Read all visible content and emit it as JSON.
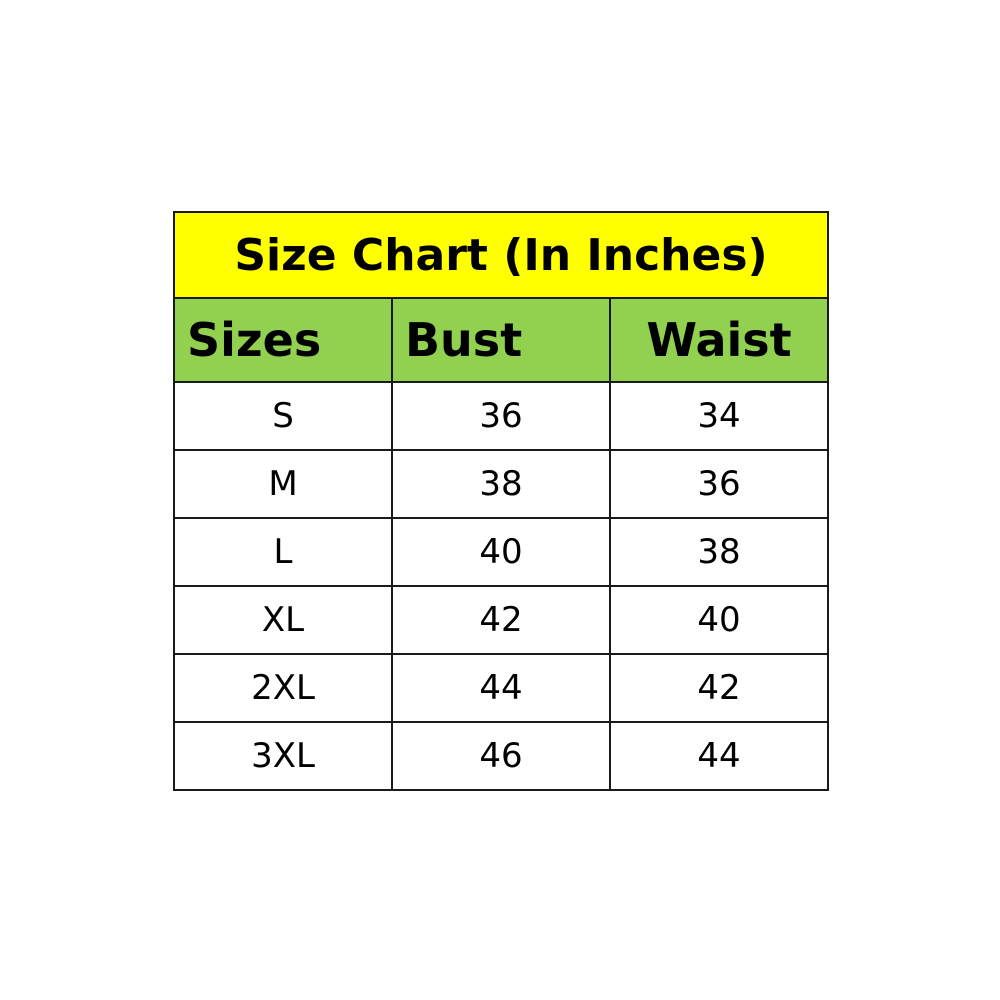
{
  "title": "Size Chart (In Inches)",
  "colors": {
    "title_bg": "#ffff00",
    "header_bg": "#92d050"
  },
  "columns": [
    "Sizes",
    "Bust",
    "Waist"
  ],
  "rows": [
    [
      "S",
      "36",
      "34"
    ],
    [
      "M",
      "38",
      "36"
    ],
    [
      "L",
      "40",
      "38"
    ],
    [
      "XL",
      "42",
      "40"
    ],
    [
      "2XL",
      "44",
      "42"
    ],
    [
      "3XL",
      "46",
      "44"
    ]
  ]
}
